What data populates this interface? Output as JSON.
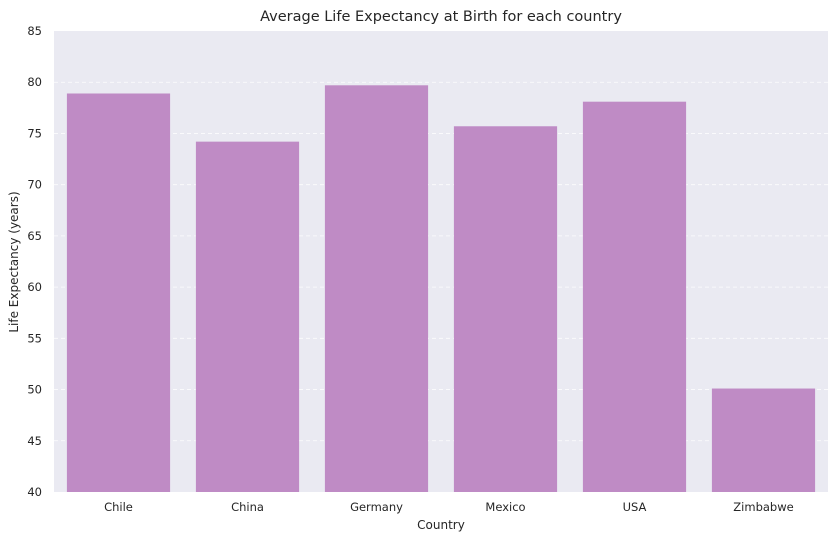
{
  "chart_data": {
    "type": "bar",
    "title": "Average Life Expectancy at Birth for each country",
    "xlabel": "Country",
    "ylabel": "Life Expectancy (years)",
    "categories": [
      "Chile",
      "China",
      "Germany",
      "Mexico",
      "USA",
      "Zimbabwe"
    ],
    "values": [
      78.9,
      74.2,
      79.7,
      75.7,
      78.1,
      50.1
    ],
    "ylim": [
      40,
      85
    ],
    "yticks": [
      40,
      45,
      50,
      55,
      60,
      65,
      70,
      75,
      80,
      85
    ],
    "grid": "horizontal dashed",
    "colors": {
      "bar": "#bf8bc5",
      "plot_background": "#eaeaf2",
      "grid": "#ffffff",
      "text": "#262626"
    }
  }
}
